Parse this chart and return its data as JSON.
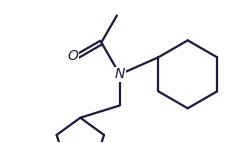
{
  "bg_color": "#ffffff",
  "line_color": "#1c1c3a",
  "bond_width": 1.6,
  "font_size_N": 10,
  "font_size_O": 10,
  "N_label": "N",
  "O_label": "O",
  "fig_width": 2.48,
  "fig_height": 1.43,
  "dpi": 100
}
